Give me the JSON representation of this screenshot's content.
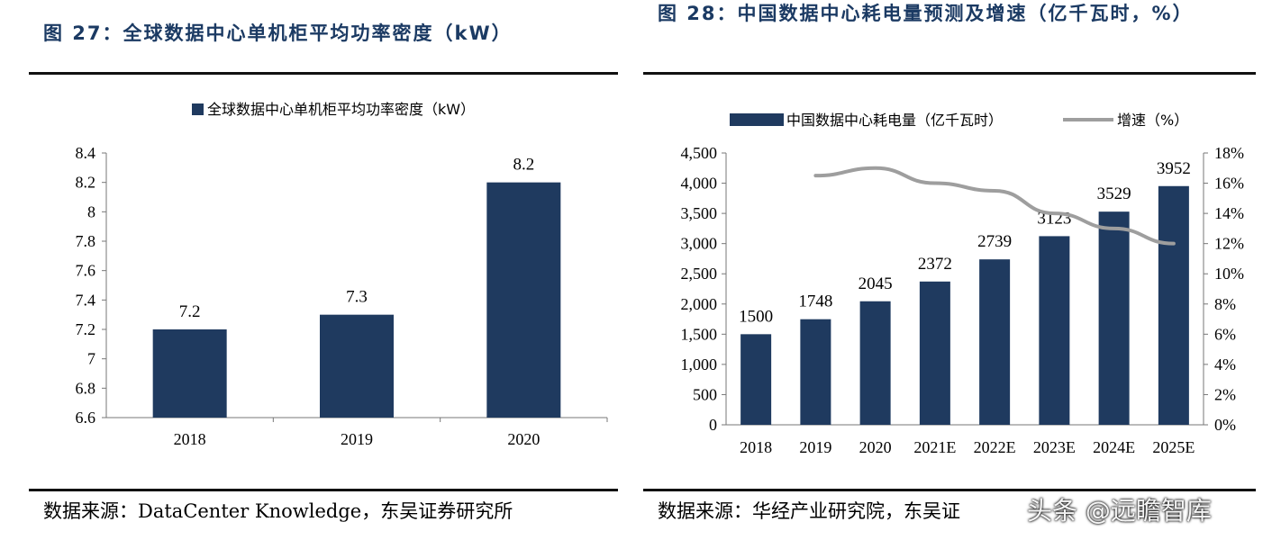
{
  "left": {
    "figure_title": "图 27：全球数据中心单机柜平均功率密度（kW）",
    "source": "数据来源：DataCenter Knowledge，东吴证券研究所"
  },
  "right": {
    "figure_title": "图 28：中国数据中心耗电量预测及增速（亿千瓦时，%）",
    "source": "数据来源：华经产业研究院，东吴证"
  },
  "watermark": "头条 @远瞻智库",
  "colors": {
    "bar": "#1f3a5f",
    "line": "#9e9e9e",
    "title": "#1b3a63"
  },
  "chart_data": [
    {
      "type": "bar",
      "legend": [
        "全球数据中心单机柜平均功率密度（kW）"
      ],
      "categories": [
        "2018",
        "2019",
        "2020"
      ],
      "series": [
        {
          "name": "全球数据中心单机柜平均功率密度（kW）",
          "values": [
            7.2,
            7.3,
            8.2
          ]
        }
      ],
      "data_labels": [
        "7.2",
        "7.3",
        "8.2"
      ],
      "ylim": [
        6.6,
        8.4
      ],
      "yticks": [
        "6.6",
        "6.8",
        "7",
        "7.2",
        "7.4",
        "7.6",
        "7.8",
        "8",
        "8.2",
        "8.4"
      ],
      "grid": false,
      "legend_position": "top-center"
    },
    {
      "type": "bar",
      "legend": [
        "中国数据中心耗电量（亿千瓦时）",
        "增速（%）"
      ],
      "categories": [
        "2018",
        "2019",
        "2020",
        "2021E",
        "2022E",
        "2023E",
        "2024E",
        "2025E"
      ],
      "series": [
        {
          "name": "中国数据中心耗电量（亿千瓦时）",
          "type": "bar",
          "axis": "left",
          "values": [
            1500,
            1748,
            2045,
            2372,
            2739,
            3123,
            3529,
            3952
          ]
        },
        {
          "name": "增速（%）",
          "type": "line",
          "axis": "right",
          "values": [
            null,
            16.5,
            17.0,
            16.0,
            15.5,
            14.0,
            13.0,
            12.0
          ]
        }
      ],
      "data_labels": [
        "1500",
        "1748",
        "2045",
        "2372",
        "2739",
        "3123",
        "3529",
        "3952"
      ],
      "ylim": [
        0,
        4500
      ],
      "yticks": [
        "0",
        "500",
        "1,000",
        "1,500",
        "2,000",
        "2,500",
        "3,000",
        "3,500",
        "4,000",
        "4,500"
      ],
      "y2lim": [
        0,
        18
      ],
      "y2ticks": [
        "0%",
        "2%",
        "4%",
        "6%",
        "8%",
        "10%",
        "12%",
        "14%",
        "16%",
        "18%"
      ],
      "grid": false,
      "legend_position": "top-center"
    }
  ]
}
